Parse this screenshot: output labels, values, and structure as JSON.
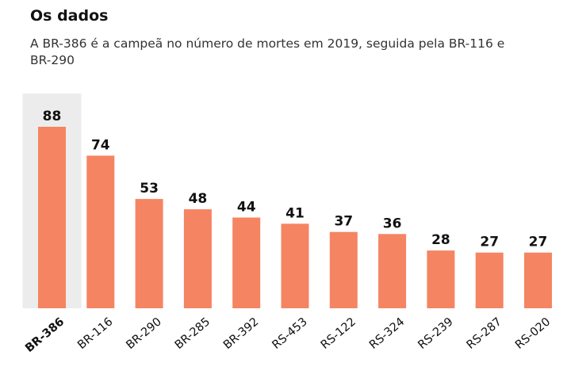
{
  "title": "Os dados",
  "subtitle": "A BR-386 é a campeã no número de mortes em 2019, seguida pela BR-116 e BR-290",
  "chart_data": {
    "type": "bar",
    "title": "Os dados",
    "subtitle": "A BR-386 é a campeã no número de mortes em 2019, seguida pela BR-116 e BR-290",
    "categories": [
      "BR-386",
      "BR-116",
      "BR-290",
      "BR-285",
      "BR-392",
      "RS-453",
      "RS-122",
      "RS-324",
      "RS-239",
      "RS-287",
      "RS-020"
    ],
    "values": [
      88,
      74,
      53,
      48,
      44,
      41,
      37,
      36,
      28,
      27,
      27
    ],
    "highlighted_category": "BR-386",
    "xlabel": "",
    "ylabel": "",
    "ylim": [
      0,
      88
    ],
    "grid": false,
    "legend": "none",
    "colors": {
      "bar": "#f58462",
      "highlight_background": "#ececec",
      "text": "#111111"
    }
  }
}
